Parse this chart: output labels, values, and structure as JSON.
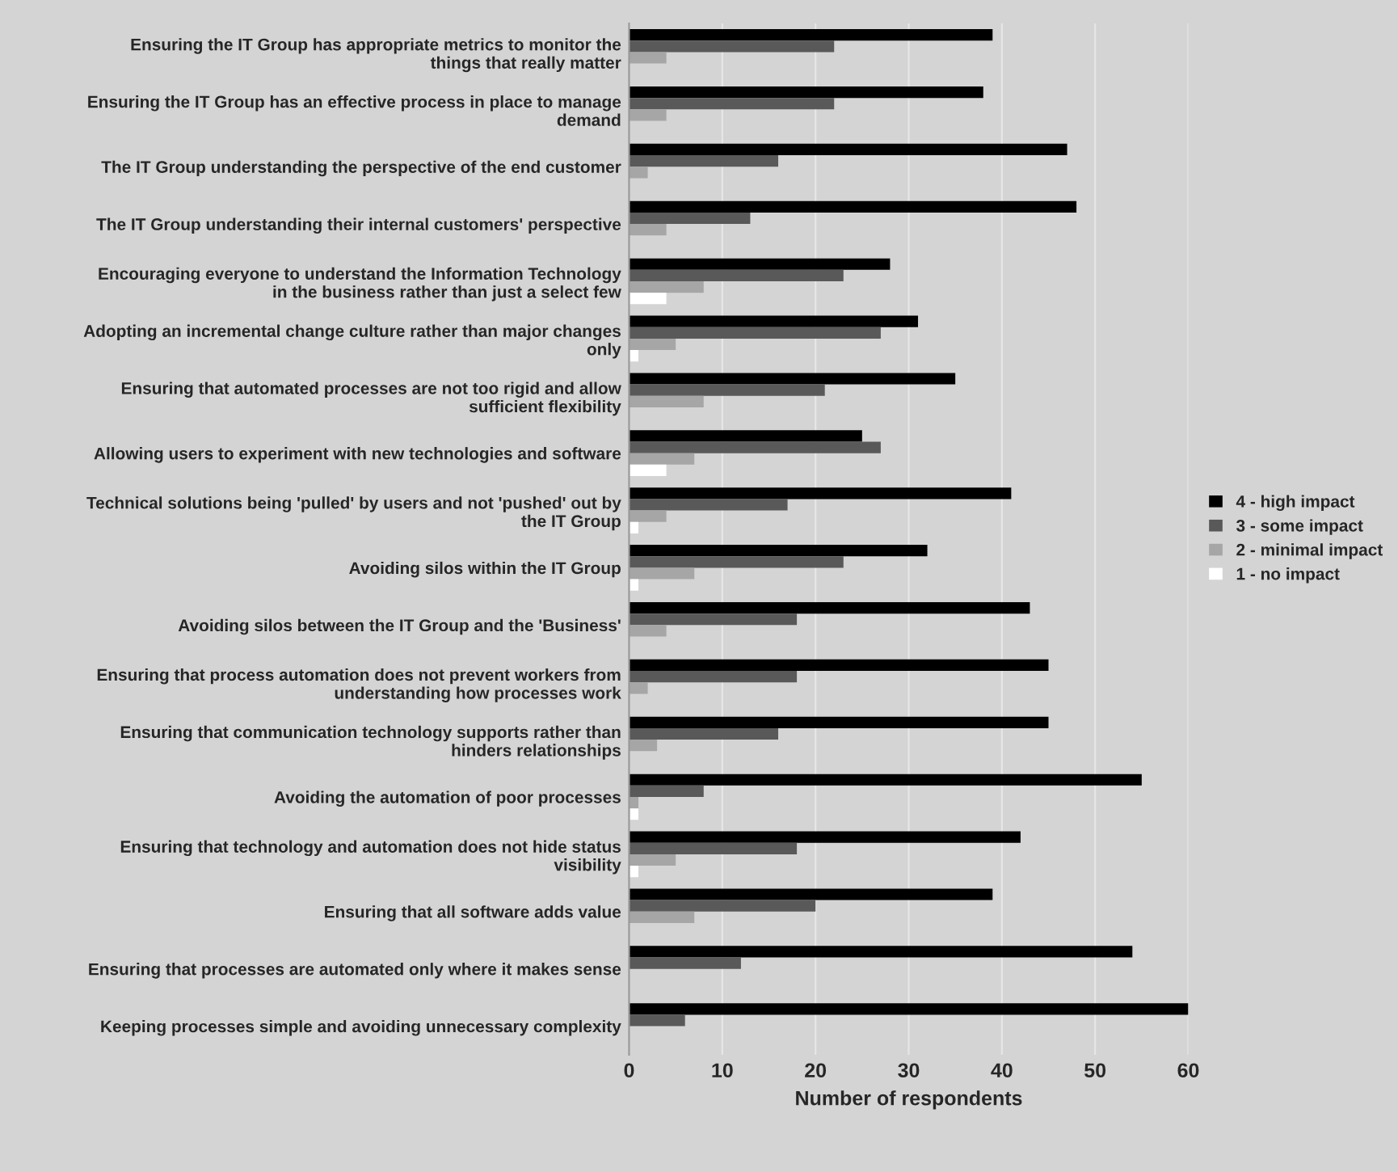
{
  "chart_data": {
    "type": "bar",
    "orientation": "horizontal",
    "xlabel": "Number of respondents",
    "categories": [
      "Ensuring the IT Group has appropriate metrics to monitor the\nthings that really matter",
      "Ensuring the IT Group has an effective process in place to manage\ndemand",
      "The IT Group understanding the perspective of the end customer",
      "The IT Group understanding their internal customers' perspective",
      "Encouraging everyone to understand the Information Technology\nin the business rather than just a select few",
      "Adopting an incremental change culture rather than major changes\nonly",
      "Ensuring that automated processes are not too rigid and allow\nsufficient flexibility",
      "Allowing users to experiment with new technologies and software",
      "Technical solutions being 'pulled' by users and not 'pushed' out by\nthe IT Group",
      "Avoiding silos within the IT Group",
      "Avoiding silos between the IT Group and the 'Business'",
      "Ensuring that process automation does not prevent workers from\nunderstanding how processes work",
      "Ensuring that communication technology supports rather than\nhinders relationships",
      "Avoiding the automation of poor processes",
      "Ensuring that technology and automation does not hide status\nvisibility",
      "Ensuring that all software adds value",
      "Ensuring that processes are automated only where it makes sense",
      "Keeping processes simple and avoiding unnecessary complexity"
    ],
    "series": [
      {
        "name": "4 - high impact",
        "color": "#000000",
        "values": [
          39,
          38,
          47,
          48,
          28,
          31,
          35,
          25,
          41,
          32,
          43,
          45,
          45,
          55,
          42,
          39,
          54,
          60
        ]
      },
      {
        "name": "3 - some impact",
        "color": "#595959",
        "values": [
          22,
          22,
          16,
          13,
          23,
          27,
          21,
          27,
          17,
          23,
          18,
          18,
          16,
          8,
          18,
          20,
          12,
          6
        ]
      },
      {
        "name": "2 - minimal impact",
        "color": "#a6a6a6",
        "values": [
          4,
          4,
          2,
          4,
          8,
          5,
          8,
          7,
          4,
          7,
          4,
          2,
          3,
          1,
          5,
          7,
          null,
          null
        ]
      },
      {
        "name": "1 - no impact",
        "color": "#ffffff",
        "values": [
          null,
          null,
          null,
          null,
          4,
          1,
          null,
          4,
          1,
          1,
          null,
          null,
          null,
          1,
          1,
          null,
          null,
          null
        ]
      }
    ],
    "xlim": [
      0,
      60
    ],
    "xticks": [
      0,
      10,
      20,
      30,
      40,
      50,
      60
    ],
    "grid": "x",
    "legend": "right"
  }
}
